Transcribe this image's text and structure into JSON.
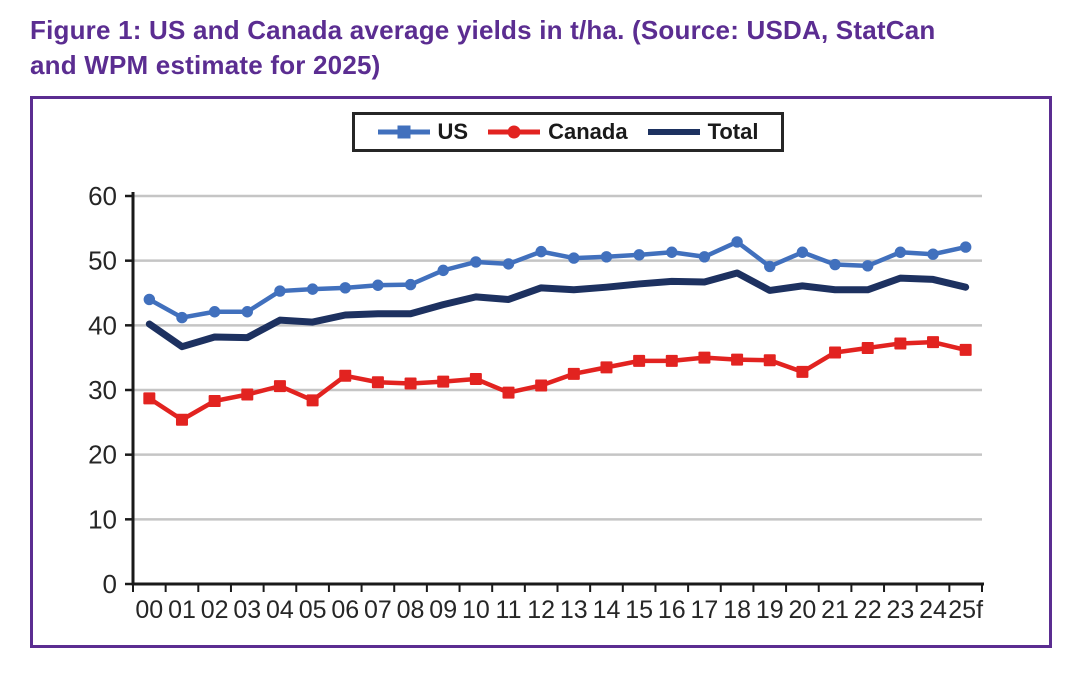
{
  "title": {
    "line1": "Figure 1: US and Canada average yields in t/ha. (Source: USDA, StatCan",
    "line2": "and WPM estimate for 2025)"
  },
  "colors": {
    "accent_purple": "#5b2d91",
    "us_blue": "#4170bd",
    "canada_red": "#e22320",
    "total_navy": "#1d3160",
    "grid_gray": "#c5c5c5",
    "axis_black": "#1a1a1a",
    "label_text": "#262626",
    "legend_border": "#262626"
  },
  "legend": {
    "entries": [
      "US",
      "Canada",
      "Total"
    ],
    "position": "top-center",
    "marker_shapes": {
      "US": "square",
      "Canada": "circle",
      "Total": "none"
    }
  },
  "chart_data": {
    "type": "line",
    "title": "Figure 1: US and Canada average yields in t/ha. (Source: USDA, StatCan and WPM estimate for 2025)",
    "xlabel": "",
    "ylabel": "",
    "ylim": [
      0,
      60
    ],
    "ytick_step": 10,
    "yticks": [
      0,
      10,
      20,
      30,
      40,
      50,
      60
    ],
    "grid": true,
    "categories": [
      "00",
      "01",
      "02",
      "03",
      "04",
      "05",
      "06",
      "07",
      "08",
      "09",
      "10",
      "11",
      "12",
      "13",
      "14",
      "15",
      "16",
      "17",
      "18",
      "19",
      "20",
      "21",
      "22",
      "23",
      "24",
      "25f"
    ],
    "series": [
      {
        "name": "US",
        "color": "#4170bd",
        "chart_marker": "circle",
        "legend_marker": "square",
        "line_width": 4.5,
        "values": [
          44.0,
          41.2,
          42.1,
          42.1,
          45.3,
          45.6,
          45.8,
          46.2,
          46.3,
          48.5,
          49.8,
          49.5,
          51.4,
          50.4,
          50.6,
          50.9,
          51.3,
          50.6,
          52.9,
          49.1,
          51.3,
          49.4,
          49.2,
          51.3,
          51.0,
          52.1
        ]
      },
      {
        "name": "Canada",
        "color": "#e22320",
        "chart_marker": "square",
        "legend_marker": "circle",
        "line_width": 4.5,
        "values": [
          28.7,
          25.4,
          28.3,
          29.3,
          30.6,
          28.4,
          32.2,
          31.2,
          31.0,
          31.3,
          31.7,
          29.6,
          30.7,
          32.5,
          33.5,
          34.5,
          34.5,
          35.0,
          34.7,
          34.6,
          32.8,
          35.8,
          36.5,
          37.2,
          37.4,
          36.2
        ]
      },
      {
        "name": "Total",
        "color": "#1d3160",
        "chart_marker": "none",
        "legend_marker": "none",
        "line_width": 7,
        "values": [
          40.2,
          36.7,
          38.2,
          38.1,
          40.8,
          40.5,
          41.6,
          41.8,
          41.8,
          43.2,
          44.4,
          44.0,
          45.8,
          45.5,
          45.9,
          46.4,
          46.8,
          46.7,
          48.1,
          45.4,
          46.1,
          45.5,
          45.5,
          47.3,
          47.1,
          45.9
        ]
      }
    ]
  }
}
